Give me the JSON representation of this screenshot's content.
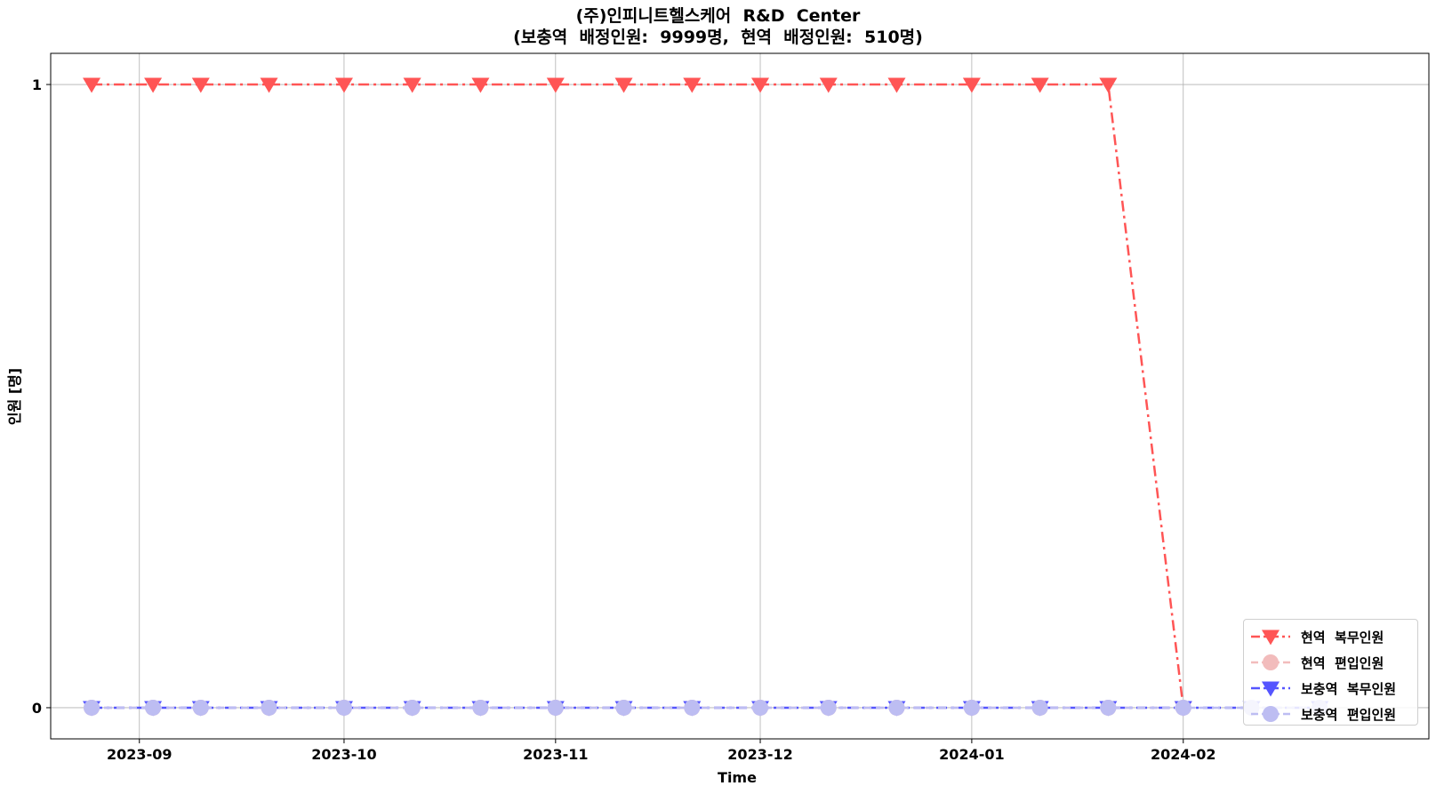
{
  "chart_data": {
    "type": "line",
    "title": "(주)인피니트헬스케어  R&D  Center\n(보충역  배정인원:  9999명,  현역  배정인원:  510명)",
    "xlabel": "Time",
    "ylabel": "인원  [명]",
    "x": [
      "2023-08-25",
      "2023-09-03",
      "2023-09-10",
      "2023-09-20",
      "2023-10-01",
      "2023-10-11",
      "2023-10-21",
      "2023-11-01",
      "2023-11-11",
      "2023-11-21",
      "2023-12-01",
      "2023-12-11",
      "2023-12-21",
      "2024-01-01",
      "2024-01-11",
      "2024-01-21",
      "2024-02-01",
      "2024-02-11",
      "2024-02-21"
    ],
    "xlim": [
      "2023-08-19",
      "2024-03-08"
    ],
    "ylim": [
      -0.05,
      1.05
    ],
    "xticks": [
      "2023-09",
      "2023-10",
      "2023-11",
      "2023-12",
      "2024-01",
      "2024-02"
    ],
    "xtick_values": [
      "2023-09-01",
      "2023-10-01",
      "2023-11-01",
      "2023-12-01",
      "2024-01-01",
      "2024-02-01"
    ],
    "yticks": [
      0,
      1
    ],
    "ytick_labels": [
      "0",
      "1"
    ],
    "grid": true,
    "legend_position": "lower-right",
    "series": [
      {
        "name": "현역  복무인원",
        "color": "#ff5555",
        "marker": "triangle-down",
        "linestyle": "dashdot",
        "values": [
          1,
          1,
          1,
          1,
          1,
          1,
          1,
          1,
          1,
          1,
          1,
          1,
          1,
          1,
          1,
          1,
          0,
          null,
          null
        ]
      },
      {
        "name": "현역  편입인원",
        "color": "#f2bcbc",
        "marker": "circle",
        "linestyle": "dashed",
        "values": [
          0,
          0,
          0,
          0,
          0,
          0,
          0,
          0,
          0,
          0,
          0,
          0,
          0,
          0,
          0,
          0,
          0,
          null,
          null
        ]
      },
      {
        "name": "보충역  복무인원",
        "color": "#5555ff",
        "marker": "triangle-down",
        "linestyle": "dashdot",
        "values": [
          0,
          0,
          0,
          0,
          0,
          0,
          0,
          0,
          0,
          0,
          0,
          0,
          0,
          0,
          0,
          0,
          0,
          0,
          0
        ]
      },
      {
        "name": "보충역  편입인원",
        "color": "#bdbdf2",
        "marker": "circle",
        "linestyle": "dashed",
        "values": [
          0,
          0,
          0,
          0,
          0,
          0,
          0,
          0,
          0,
          0,
          0,
          0,
          0,
          0,
          0,
          0,
          0,
          0,
          0
        ]
      }
    ]
  }
}
